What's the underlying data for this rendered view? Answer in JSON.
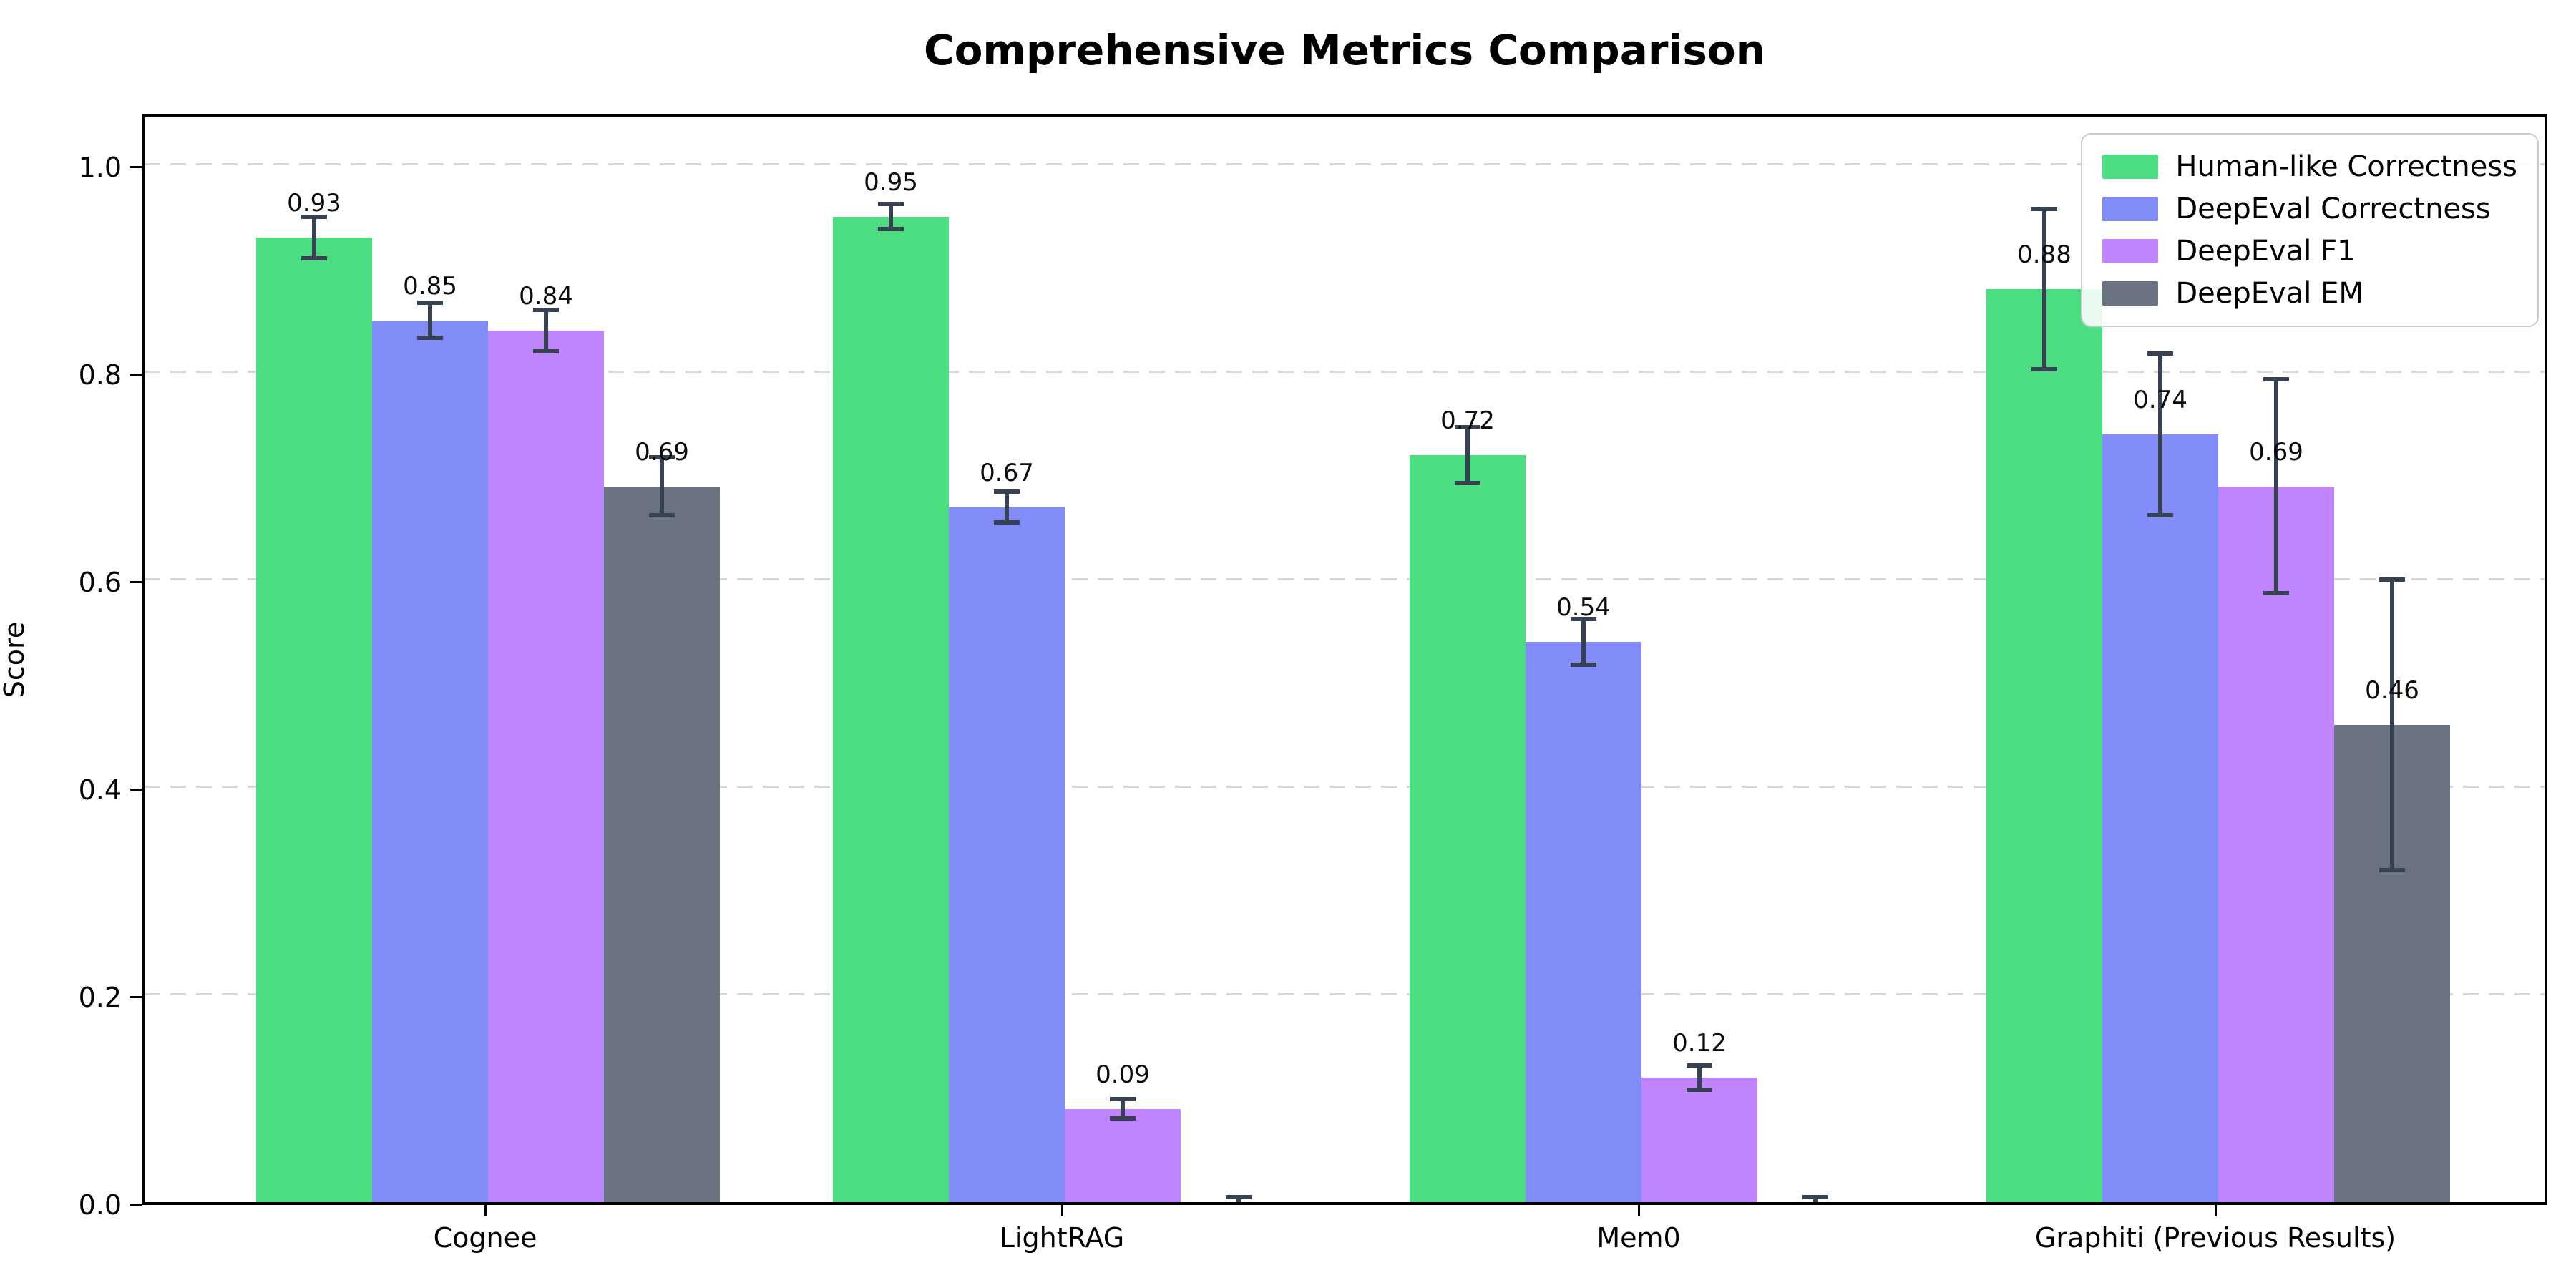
{
  "title": "Comprehensive Metrics Comparison",
  "ylabel": "Score",
  "chart_data": {
    "type": "bar",
    "title": "Comprehensive Metrics Comparison",
    "xlabel": "",
    "ylabel": "Score",
    "categories": [
      "Cognee",
      "LightRAG",
      "Mem0",
      "Graphiti (Previous Results)"
    ],
    "series": [
      {
        "name": "Human-like Correctness",
        "color": "#4ade80",
        "values": [
          0.93,
          0.95,
          0.72,
          0.88
        ],
        "errors": [
          0.02,
          0.012,
          0.027,
          0.077
        ],
        "labels": [
          "0.93",
          "0.95",
          "0.72",
          "0.88"
        ]
      },
      {
        "name": "DeepEval Correctness",
        "color": "#818cf8",
        "values": [
          0.85,
          0.67,
          0.54,
          0.74
        ],
        "errors": [
          0.017,
          0.015,
          0.022,
          0.078
        ],
        "labels": [
          "0.85",
          "0.67",
          "0.54",
          "0.74"
        ]
      },
      {
        "name": "DeepEval F1",
        "color": "#c084fc",
        "values": [
          0.84,
          0.09,
          0.12,
          0.69
        ],
        "errors": [
          0.02,
          0.009,
          0.012,
          0.103
        ],
        "labels": [
          "0.84",
          "0.09",
          "0.12",
          "0.69"
        ]
      },
      {
        "name": "DeepEval EM",
        "color": "#6b7280",
        "values": [
          0.69,
          0.0,
          0.0,
          0.46
        ],
        "errors": [
          0.028,
          0.005,
          0.005,
          0.14
        ],
        "labels": [
          "0.69",
          "",
          "",
          "0.46"
        ]
      }
    ],
    "yticks": [
      0.0,
      0.2,
      0.4,
      0.6,
      0.8,
      1.0
    ],
    "ytick_labels": [
      "0.0",
      "0.2",
      "0.4",
      "0.6",
      "0.8",
      "1.0"
    ],
    "ylim": [
      0.0,
      1.05
    ],
    "grid": "horizontal-dashed",
    "legend_position": "upper right",
    "bar_value_labels_shown": true
  },
  "colors": {
    "accent_green": "#4ade80",
    "accent_indigo": "#818cf8",
    "accent_purple": "#c084fc",
    "accent_gray": "#6b7280",
    "error_bar": "#364152",
    "gridline": "#d9d9d9",
    "legend_border": "#cccccc",
    "axis": "#000000"
  }
}
